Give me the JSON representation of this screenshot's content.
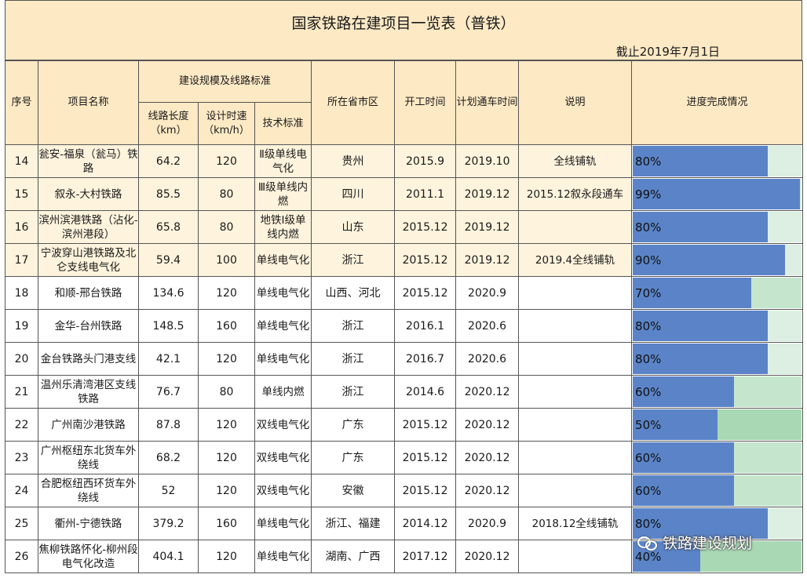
{
  "title": "国家铁路在建项目一览表（普铁）",
  "as_of": "截止2019年7月1日",
  "headers": {
    "seq": "序号",
    "name": "项目名称",
    "scale": "建设规模及线路标准",
    "length": "线路长度（km）",
    "speed": "设计时速（km/h）",
    "standard": "技术标准",
    "province": "所在省市区",
    "start": "开工时间",
    "open": "计划通车时间",
    "note": "说明",
    "progress": "进度完成情况"
  },
  "colors": {
    "bar": "#5b84c8",
    "remaining_high": "#dcefe2",
    "remaining_mid": "#c5e6cd",
    "remaining_low": "#a9d8b4"
  },
  "rows": [
    {
      "seq": "14",
      "name": "瓮安-福泉（瓮马）铁路",
      "length": "64.2",
      "speed": "120",
      "standard": "Ⅱ级单线电气化",
      "province": "贵州",
      "start": "2015.9",
      "open": "2019.10",
      "note": "全线铺轨",
      "progress": "80%",
      "progress_value": 0.8,
      "highlight": true
    },
    {
      "seq": "15",
      "name": "叙永-大村铁路",
      "length": "85.5",
      "speed": "80",
      "standard": "Ⅲ级单线内燃",
      "province": "四川",
      "start": "2011.1",
      "open": "2019.12",
      "note": "2015.12叙永段通车",
      "progress": "99%",
      "progress_value": 0.99,
      "highlight": true
    },
    {
      "seq": "16",
      "name": "滨州滨港铁路（沾化-滨州港段）",
      "length": "65.8",
      "speed": "80",
      "standard": "地铁Ⅰ级单线内燃",
      "province": "山东",
      "start": "2015.12",
      "open": "2019.12",
      "note": "",
      "progress": "80%",
      "progress_value": 0.8,
      "highlight": true
    },
    {
      "seq": "17",
      "name": "宁波穿山港铁路及北仑支线电气化",
      "length": "59.4",
      "speed": "100",
      "standard": "单线电气化",
      "province": "浙江",
      "start": "2015.12",
      "open": "2019.12",
      "note": "2019.4全线铺轨",
      "progress": "90%",
      "progress_value": 0.9,
      "highlight": true
    },
    {
      "seq": "18",
      "name": "和顺-邢台铁路",
      "length": "134.6",
      "speed": "120",
      "standard": "单线电气化",
      "province": "山西、河北",
      "start": "2015.12",
      "open": "2020.9",
      "note": "",
      "progress": "70%",
      "progress_value": 0.7,
      "highlight": false
    },
    {
      "seq": "19",
      "name": "金华-台州铁路",
      "length": "148.5",
      "speed": "160",
      "standard": "单线电气化",
      "province": "浙江",
      "start": "2016.1",
      "open": "2020.6",
      "note": "",
      "progress": "80%",
      "progress_value": 0.8,
      "highlight": false
    },
    {
      "seq": "20",
      "name": "金台铁路头门港支线",
      "length": "42.1",
      "speed": "120",
      "standard": "单线电气化",
      "province": "浙江",
      "start": "2016.7",
      "open": "2020.6",
      "note": "",
      "progress": "80%",
      "progress_value": 0.8,
      "highlight": false
    },
    {
      "seq": "21",
      "name": "温州乐清湾港区支线铁路",
      "length": "76.7",
      "speed": "80",
      "standard": "单线内燃",
      "province": "浙江",
      "start": "2014.6",
      "open": "2020.12",
      "note": "",
      "progress": "60%",
      "progress_value": 0.6,
      "highlight": false
    },
    {
      "seq": "22",
      "name": "广州南沙港铁路",
      "length": "87.8",
      "speed": "120",
      "standard": "双线电气化",
      "province": "广东",
      "start": "2015.12",
      "open": "2020.12",
      "note": "",
      "progress": "50%",
      "progress_value": 0.5,
      "highlight": false
    },
    {
      "seq": "23",
      "name": "广州枢纽东北货车外绕线",
      "length": "68.2",
      "speed": "120",
      "standard": "双线电气化",
      "province": "广东",
      "start": "2015.12",
      "open": "2020.12",
      "note": "",
      "progress": "60%",
      "progress_value": 0.6,
      "highlight": false
    },
    {
      "seq": "24",
      "name": "合肥枢纽西环货车外绕线",
      "length": "52",
      "speed": "120",
      "standard": "双线电气化",
      "province": "安徽",
      "start": "2015.12",
      "open": "2020.12",
      "note": "",
      "progress": "60%",
      "progress_value": 0.6,
      "highlight": false
    },
    {
      "seq": "25",
      "name": "衢州-宁德铁路",
      "length": "379.2",
      "speed": "160",
      "standard": "单线电气化",
      "province": "浙江、福建",
      "start": "2014.12",
      "open": "2020.9",
      "note": "2018.12全线铺轨",
      "progress": "80%",
      "progress_value": 0.8,
      "highlight": false
    },
    {
      "seq": "26",
      "name": "焦柳铁路怀化-柳州段电气化改造",
      "length": "404.1",
      "speed": "120",
      "standard": "单线电气化",
      "province": "湖南、广西",
      "start": "2017.12",
      "open": "2020.12",
      "note": "",
      "progress": "40%",
      "progress_value": 0.4,
      "highlight": false
    }
  ],
  "watermark": "铁路建设规划"
}
